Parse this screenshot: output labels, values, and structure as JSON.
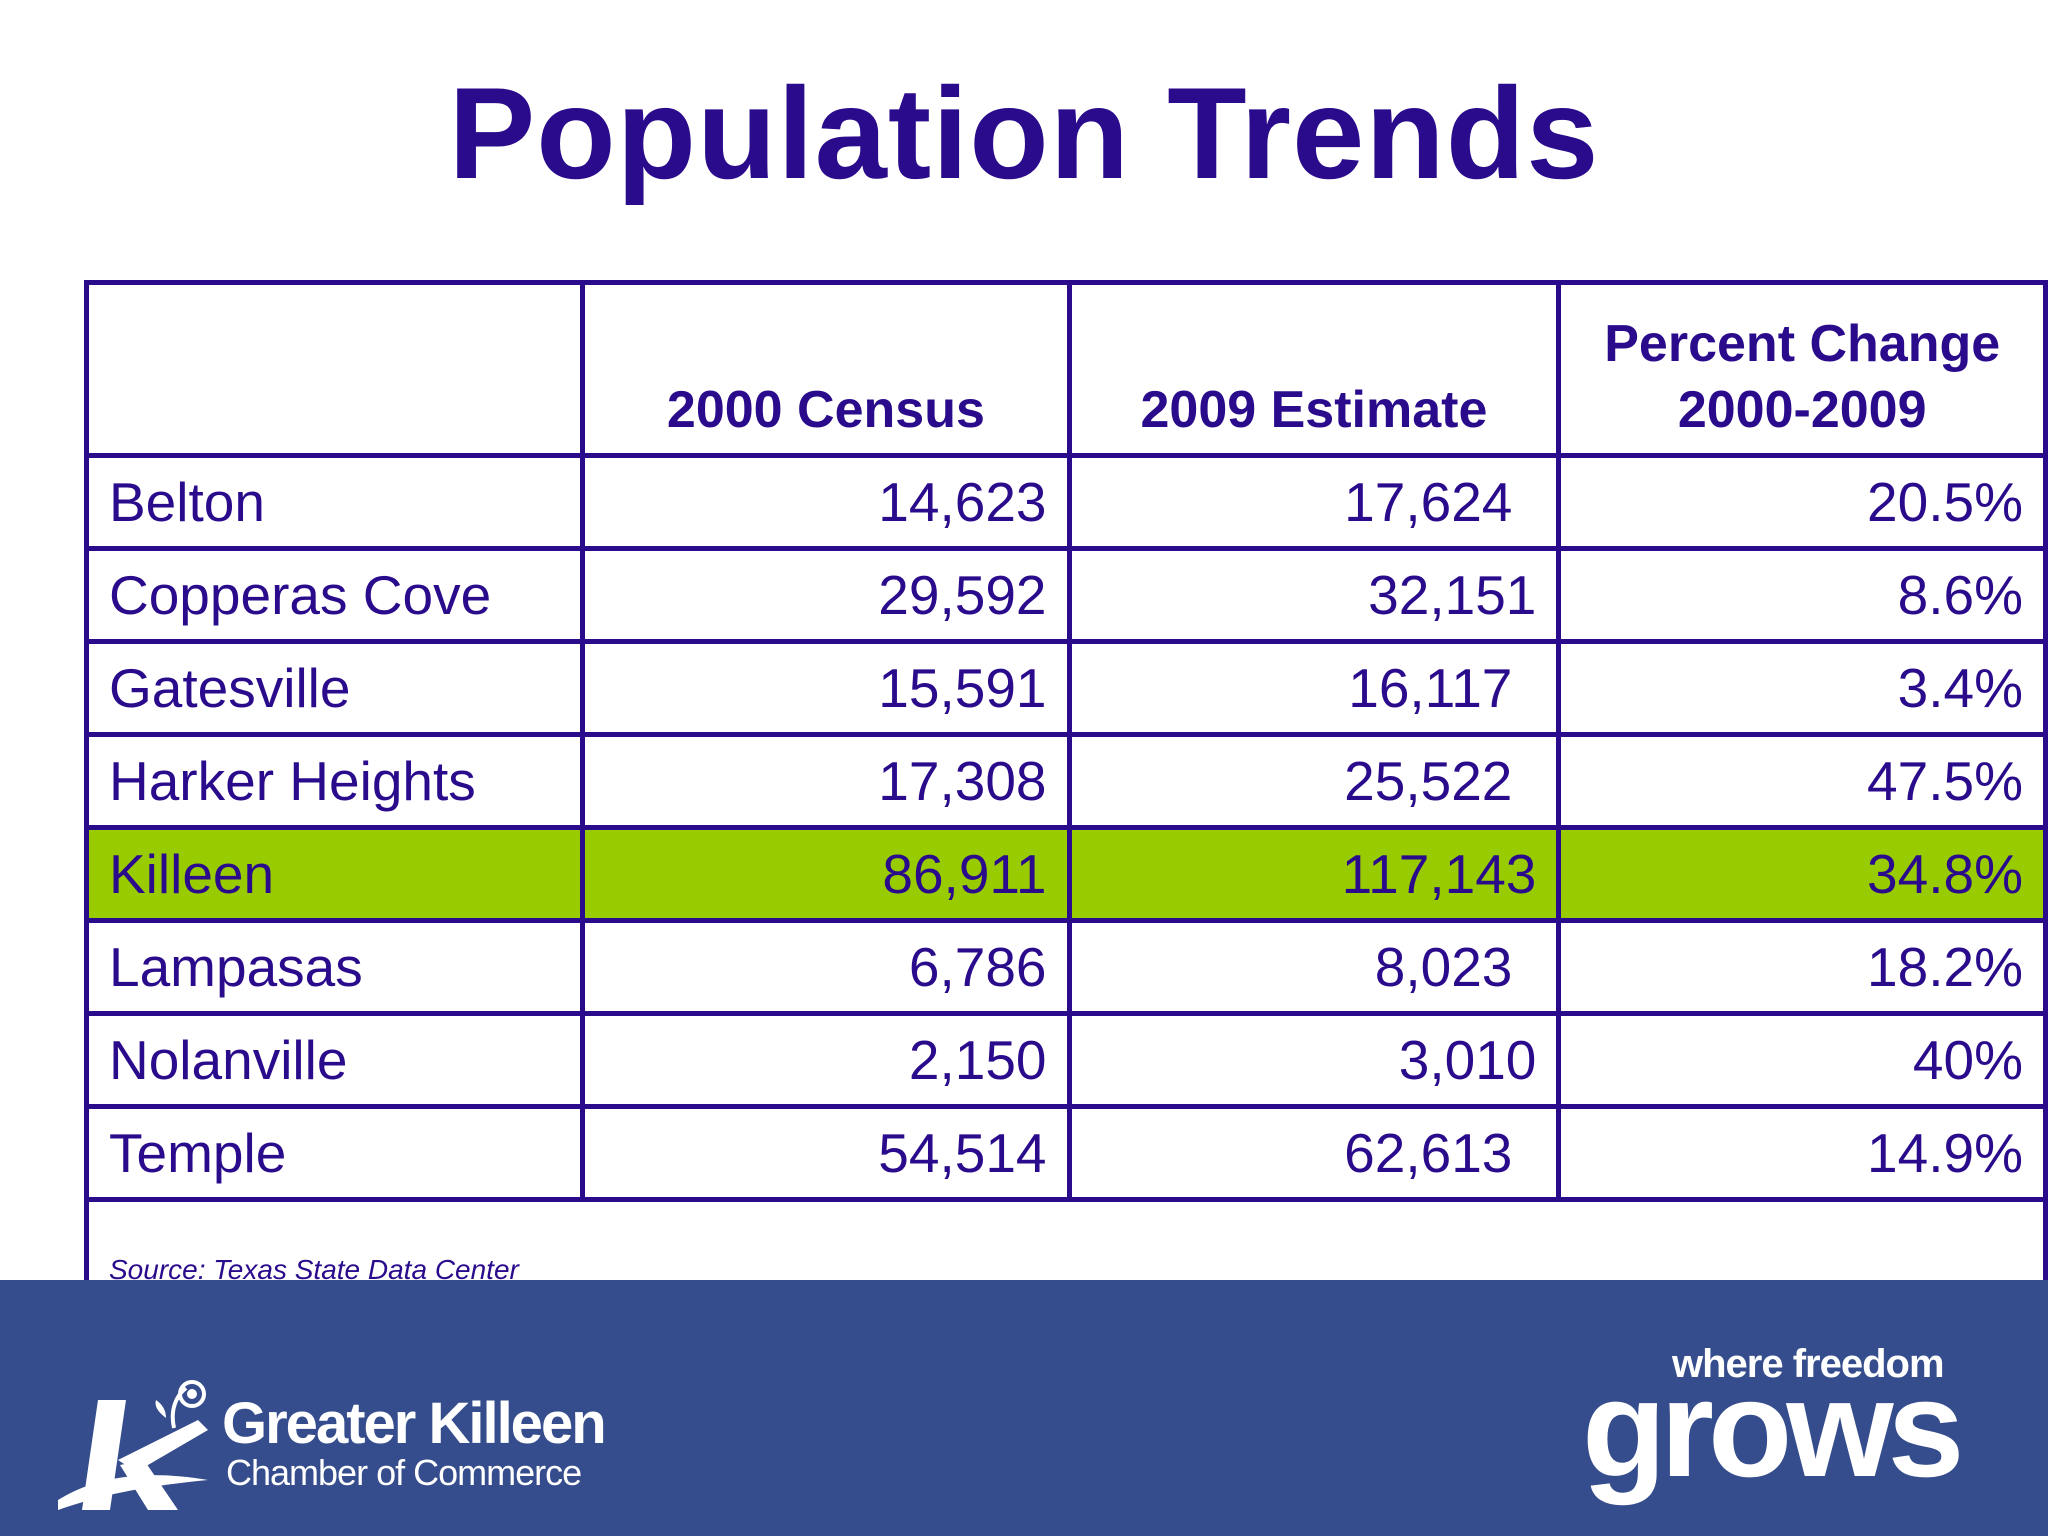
{
  "title": "Population Trends",
  "table": {
    "headers": [
      "",
      "2000 Census",
      "2009 Estimate",
      "Percent Change 2000-2009"
    ],
    "header_pct_line1": "Percent Change",
    "header_pct_line2": "2000-2009",
    "rows": [
      {
        "city": "Belton",
        "census_2000": "14,623",
        "estimate_2009": "17,624",
        "pct_change": "20.5%"
      },
      {
        "city": "Copperas Cove",
        "census_2000": "29,592",
        "estimate_2009": "32,151",
        "pct_change": "8.6%"
      },
      {
        "city": "Gatesville",
        "census_2000": "15,591",
        "estimate_2009": "16,117",
        "pct_change": "3.4%"
      },
      {
        "city": "Harker Heights",
        "census_2000": "17,308",
        "estimate_2009": "25,522",
        "pct_change": "47.5%"
      },
      {
        "city": "Killeen",
        "census_2000": "86,911",
        "estimate_2009": "117,143",
        "pct_change": "34.8%",
        "highlighted": true
      },
      {
        "city": "Lampasas",
        "census_2000": "6,786",
        "estimate_2009": "8,023",
        "pct_change": "18.2%"
      },
      {
        "city": "Nolanville",
        "census_2000": "2,150",
        "estimate_2009": "3,010",
        "pct_change": "40%"
      },
      {
        "city": "Temple",
        "census_2000": "54,514",
        "estimate_2009": "62,613",
        "pct_change": "14.9%"
      }
    ],
    "source": "Source: Texas State Data Center"
  },
  "footer": {
    "logo_name": "Greater Killeen",
    "logo_sub": "Chamber of Commerce",
    "logo_icon": "killeen-k-rose-icon",
    "tagline_top": "where freedom",
    "tagline_main": "grows"
  },
  "colors": {
    "text": "#2a0b8c",
    "highlight": "#99cc00",
    "footer_bg": "#354d8c"
  }
}
